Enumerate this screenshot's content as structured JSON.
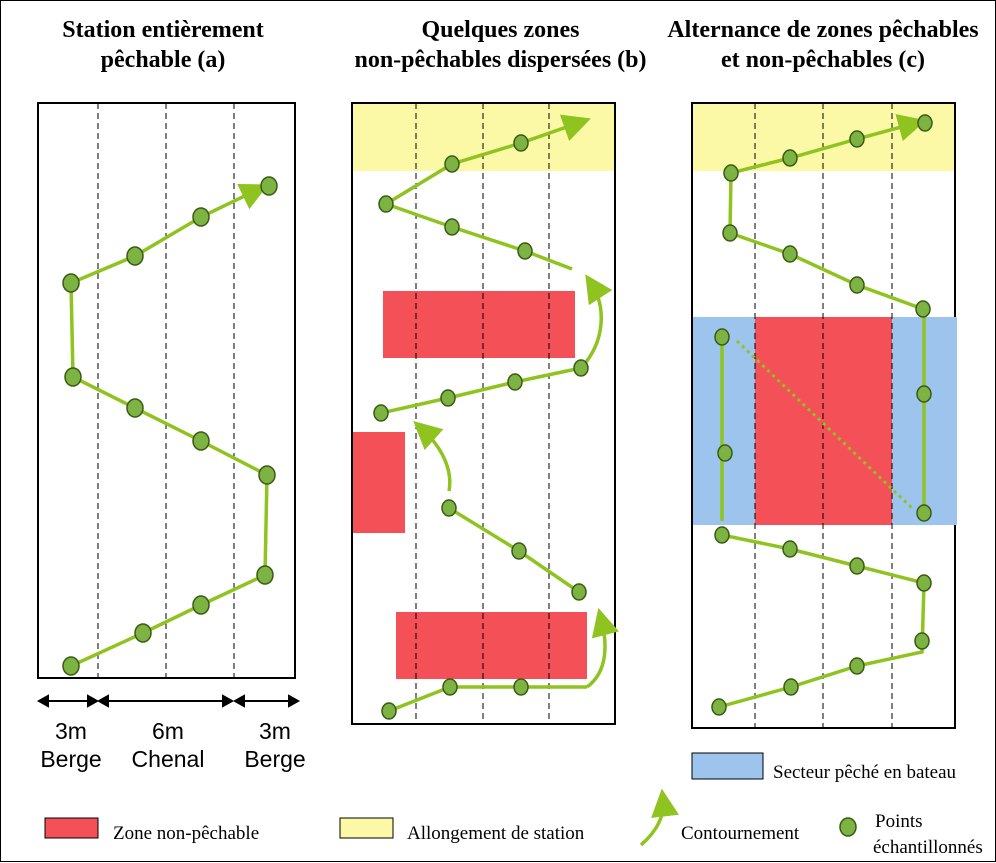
{
  "titles": {
    "a": [
      "Station entièrement",
      "pêchable (a)"
    ],
    "b": [
      "Quelques zones",
      "non-pêchables dispersées (b)"
    ],
    "c": [
      "Alternance de zones pêchables",
      "et non-pêchables (c)"
    ]
  },
  "dimensions": {
    "left": {
      "width": "3m",
      "label": "Berge"
    },
    "middle": {
      "width": "6m",
      "label": "Chenal"
    },
    "right": {
      "width": "3m",
      "label": "Berge"
    }
  },
  "legend": {
    "non_fishable": "Zone non-pêchable",
    "extension": "Allongement de station",
    "bypass": "Contournement",
    "points": [
      "Points",
      "échantillonnés"
    ],
    "boat_sector": "Secteur pêché en bateau"
  },
  "colors": {
    "non_fishable": "#f45057",
    "extension": "#fbf8a6",
    "boat_sector": "#9cc4ec",
    "path": "#8fc31f",
    "point_fill": "#7cb342",
    "point_stroke": "#3a5a14"
  }
}
